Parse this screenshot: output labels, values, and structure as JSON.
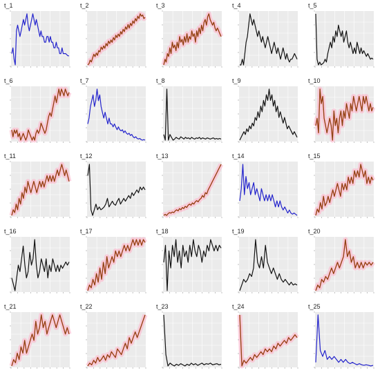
{
  "chart_data": [
    {
      "title": "t_1",
      "type": "line",
      "color": "#2222cc",
      "glow": false,
      "values": [
        3,
        4,
        2,
        1,
        7,
        8,
        7,
        6,
        7,
        8,
        9,
        8,
        9,
        10,
        8,
        7,
        8,
        9,
        10,
        9,
        8,
        9,
        8,
        7,
        6,
        7,
        6,
        6,
        5,
        5,
        6,
        6,
        5,
        6,
        5,
        5,
        4,
        4,
        5,
        4,
        4,
        3,
        3,
        4,
        3,
        3,
        3,
        2.8,
        2.6,
        2.6
      ]
    },
    {
      "title": "t_2",
      "type": "line",
      "color": "#7a4a12",
      "glow": true,
      "values": [
        1,
        1.2,
        1.8,
        1.5,
        2.2,
        2.8,
        2.4,
        3,
        2.6,
        3.4,
        3.2,
        4,
        3.6,
        4.2,
        3.8,
        4.6,
        4.2,
        5,
        4.6,
        5.2,
        4.8,
        5.6,
        5.2,
        6,
        5.6,
        6.2,
        5.8,
        6.6,
        6.2,
        7,
        6.6,
        7.4,
        7,
        7.8,
        7.2,
        8,
        7.6,
        8.4,
        8,
        8.8,
        8.4,
        9.2,
        8.8,
        9.6,
        9.2,
        9.4,
        8.8,
        9
      ]
    },
    {
      "title": "t_3",
      "type": "line",
      "color": "#7a4a12",
      "glow": true,
      "values": [
        1,
        2,
        1.5,
        3,
        2.5,
        4,
        3,
        5,
        4,
        4.5,
        3.5,
        5,
        4,
        6,
        5,
        5.5,
        4.5,
        6,
        5,
        6.5,
        5,
        6,
        5.5,
        7,
        6,
        6.5,
        5,
        7,
        6,
        7.5,
        6.5,
        8,
        7,
        8.5,
        9,
        8,
        9.5,
        10,
        9,
        8.5,
        8,
        8.5,
        7.5,
        7,
        7.5,
        7,
        6.5,
        6
      ]
    },
    {
      "title": "t_4",
      "type": "line",
      "color": "#111111",
      "glow": false,
      "values": [
        1,
        1,
        2,
        1,
        3,
        5,
        6,
        8,
        10,
        9,
        8,
        9,
        8,
        7,
        6,
        7,
        6,
        5,
        6,
        5,
        4,
        5,
        6,
        5,
        4,
        3,
        4,
        5,
        4,
        3,
        4,
        3,
        2,
        3,
        4,
        3,
        2,
        3,
        2,
        1.5,
        2,
        2,
        2.5,
        3,
        2.5,
        2
      ]
    },
    {
      "title": "t_5",
      "type": "line",
      "color": "#111111",
      "glow": false,
      "values": [
        10,
        2,
        1,
        1.5,
        1,
        1.2,
        1.4,
        2,
        1.5,
        3,
        4,
        5,
        4,
        6,
        5,
        7,
        6,
        8,
        7,
        6,
        7,
        5,
        6,
        7,
        5,
        4,
        5,
        4,
        3,
        4,
        3,
        5,
        4,
        3,
        4,
        3,
        3.5,
        3,
        2.5,
        3,
        2.5,
        2,
        2.2,
        2
      ]
    },
    {
      "title": "t_6",
      "type": "line",
      "color": "#7a4a12",
      "glow": true,
      "values": [
        3,
        2,
        3,
        2.5,
        3,
        2,
        2.5,
        1.5,
        2,
        2.5,
        2,
        1.5,
        2,
        3,
        2.5,
        2,
        1.5,
        2,
        1.5,
        2.5,
        3,
        2.5,
        3,
        4,
        3.5,
        3,
        2.5,
        3,
        4,
        5,
        5.5,
        5,
        6,
        7,
        8,
        7,
        8,
        9,
        8,
        9,
        8.5,
        8,
        9,
        8.5,
        8,
        8.5
      ]
    },
    {
      "title": "t_7",
      "type": "line",
      "color": "#2222cc",
      "glow": false,
      "values": [
        4,
        5,
        7,
        8,
        9,
        7,
        8,
        10,
        8,
        9,
        7,
        6,
        5,
        6,
        5,
        4,
        5,
        4,
        4,
        3.5,
        4,
        3.5,
        3,
        3.5,
        3,
        2.8,
        3,
        2.5,
        2.8,
        2.4,
        2.2,
        2.4,
        2,
        2.2,
        1.8,
        1.6,
        1.8,
        1.5,
        1.4,
        1.5,
        1.3,
        1.2,
        1.3,
        1.2
      ]
    },
    {
      "title": "t_8",
      "type": "line",
      "color": "#111111",
      "glow": false,
      "values": [
        2,
        1,
        10,
        1,
        2,
        1.5,
        1,
        1.2,
        1.5,
        1.3,
        1.2,
        1.6,
        1.4,
        1.2,
        1.5,
        1.3,
        1.4,
        1.2,
        1.5,
        1.3,
        1.2,
        1.4,
        1.3,
        1.5,
        1.2,
        1.4,
        1.3,
        1.2,
        1.4,
        1.3,
        1.2,
        1.3,
        1.4,
        1.2,
        1.3,
        1.2,
        1.3,
        1.2
      ]
    },
    {
      "title": "t_9",
      "type": "line",
      "color": "#111111",
      "glow": false,
      "values": [
        1,
        1.5,
        2,
        2.5,
        2,
        3,
        2.5,
        3.5,
        3,
        4,
        3.5,
        5,
        4.5,
        6,
        5,
        7,
        6,
        8,
        7,
        9,
        8,
        10,
        8,
        9,
        7,
        8,
        6,
        7,
        5,
        6,
        5,
        4,
        5,
        4,
        3,
        3.5,
        3,
        2.5,
        2,
        2.5,
        2,
        1.5
      ]
    },
    {
      "title": "t_10",
      "type": "line",
      "color": "#7a4a12",
      "glow": true,
      "values": [
        4,
        5,
        3,
        9,
        7,
        8,
        5,
        4,
        3,
        4,
        5,
        4,
        2,
        6,
        4,
        5,
        3,
        5,
        6,
        4,
        6,
        5,
        7,
        6,
        5,
        7,
        6,
        8,
        7,
        6,
        7,
        8,
        7,
        6,
        8,
        7,
        8,
        7,
        6,
        7,
        6,
        6.5
      ]
    },
    {
      "title": "t_11",
      "type": "line",
      "color": "#7a4a12",
      "glow": true,
      "values": [
        1,
        2,
        1.5,
        3,
        2,
        4,
        3,
        5,
        4,
        6,
        5,
        7,
        6,
        5,
        6,
        7,
        6,
        5,
        6,
        7,
        6,
        7,
        6,
        7,
        8,
        7,
        8,
        7,
        8,
        7,
        8,
        9,
        8,
        9,
        10,
        9,
        8,
        9,
        8,
        7
      ]
    },
    {
      "title": "t_12",
      "type": "line",
      "color": "#111111",
      "glow": false,
      "values": [
        8,
        10,
        2,
        1,
        2,
        3,
        2,
        2.5,
        2,
        2.2,
        2.5,
        3,
        4,
        2.5,
        3,
        3.5,
        3,
        2.8,
        3.5,
        4,
        3,
        3.5,
        4,
        3.5,
        4,
        4.5,
        4,
        5,
        4.5,
        5,
        5.5,
        5,
        6,
        5.5,
        6,
        5.5
      ]
    },
    {
      "title": "t_13",
      "type": "line",
      "color": "#7a4a12",
      "glow": true,
      "values": [
        1,
        1.2,
        1,
        1.3,
        1.5,
        1.4,
        1.6,
        1.5,
        1.8,
        2,
        1.8,
        2.2,
        2,
        2.4,
        2.2,
        2.6,
        2.4,
        2.8,
        3,
        2.8,
        3.2,
        3,
        3.4,
        3.6,
        3.4,
        3.8,
        4,
        4.5,
        4.2,
        5,
        4.8,
        5.5,
        6,
        6.5,
        7,
        7.5,
        8,
        8.5,
        9,
        9.5,
        10
      ]
    },
    {
      "title": "t_14",
      "type": "line",
      "color": "#2222cc",
      "glow": false,
      "values": [
        4,
        6,
        10,
        5,
        8,
        6,
        7,
        5,
        6,
        7,
        5,
        6,
        5,
        4,
        6,
        5,
        4,
        5,
        4,
        5,
        4,
        5,
        4,
        3,
        4,
        3,
        4,
        3,
        2.5,
        3,
        2.5,
        2,
        2.5,
        2,
        1.8,
        2,
        1.8,
        1.6
      ]
    },
    {
      "title": "t_15",
      "type": "line",
      "color": "#7a4a12",
      "glow": true,
      "values": [
        1,
        2,
        1.5,
        3,
        2,
        4,
        2.5,
        3,
        4,
        3,
        4,
        5,
        4,
        5,
        6,
        5,
        4,
        6,
        5,
        6,
        5,
        7,
        6,
        7,
        6,
        8,
        7,
        8,
        7,
        9,
        8,
        7,
        8,
        6,
        7,
        6,
        7,
        6.5
      ]
    },
    {
      "title": "t_16",
      "type": "line",
      "color": "#111111",
      "glow": false,
      "values": [
        3,
        2,
        1,
        3,
        5,
        4,
        6,
        8,
        5,
        3,
        4,
        7,
        5,
        6,
        9,
        5,
        3,
        4,
        6,
        5,
        4,
        6,
        3,
        5,
        4,
        6,
        5,
        4,
        5,
        4,
        5,
        4.5,
        5,
        5.5,
        5,
        5.5
      ]
    },
    {
      "title": "t_17",
      "type": "line",
      "color": "#7a4a12",
      "glow": true,
      "values": [
        1,
        2,
        1.5,
        3,
        2,
        4,
        2.5,
        5,
        3,
        6,
        4,
        7,
        5,
        6,
        7,
        6,
        8,
        7,
        8,
        7,
        8,
        9,
        8,
        9,
        8,
        9,
        10,
        9,
        10,
        9,
        10,
        9,
        10,
        9.5
      ]
    },
    {
      "title": "t_18",
      "type": "line",
      "color": "#111111",
      "glow": false,
      "values": [
        6,
        9,
        1,
        8,
        5,
        9,
        7,
        10,
        6,
        8,
        5,
        9,
        7,
        8,
        6,
        9,
        7,
        10,
        8,
        7,
        9,
        8,
        6,
        8,
        7,
        9,
        8,
        10,
        9,
        8,
        9,
        8,
        9,
        8.5
      ]
    },
    {
      "title": "t_19",
      "type": "line",
      "color": "#111111",
      "glow": false,
      "values": [
        1,
        2,
        3,
        2.5,
        3,
        4,
        3.5,
        5,
        10,
        6,
        5,
        7,
        5,
        9,
        6,
        5,
        4,
        5,
        4,
        3,
        4,
        3,
        2.5,
        3,
        2.5,
        2,
        2.5,
        2,
        2.2,
        2
      ]
    },
    {
      "title": "t_20",
      "type": "line",
      "color": "#7a4a12",
      "glow": true,
      "values": [
        1,
        2,
        1.5,
        3,
        2.5,
        3.5,
        3,
        4,
        5,
        4,
        5,
        6,
        5,
        6,
        7,
        10,
        7,
        8,
        6,
        7,
        5,
        6,
        5,
        6,
        5,
        6,
        5.5,
        6,
        5.5,
        6
      ]
    },
    {
      "title": "t_21",
      "type": "line",
      "color": "#7a4a12",
      "glow": true,
      "values": [
        1,
        2,
        1.5,
        3,
        2,
        4,
        3,
        5,
        3,
        4,
        5,
        6,
        5,
        8,
        6,
        7,
        9,
        7,
        8,
        6,
        7,
        8,
        9,
        8,
        7,
        8,
        9,
        8,
        7,
        6,
        7,
        6
      ]
    },
    {
      "title": "t_22",
      "type": "line",
      "color": "#7a4a12",
      "glow": true,
      "values": [
        1,
        1.5,
        1.2,
        2,
        1.5,
        2.5,
        1.8,
        2.2,
        2.8,
        2,
        3,
        2.5,
        3.5,
        3,
        2.5,
        4,
        3.5,
        3,
        4,
        5,
        4,
        6,
        5,
        6,
        7,
        6,
        7,
        8,
        9,
        10
      ]
    },
    {
      "title": "t_23",
      "type": "line",
      "color": "#111111",
      "glow": false,
      "values": [
        10,
        3,
        1,
        1.5,
        1.2,
        1,
        1.3,
        1.1,
        1.4,
        1.2,
        1,
        1.3,
        1.1,
        1.5,
        1.2,
        1.4,
        1.1,
        1.3,
        1.5,
        1.2,
        1.4,
        1.3,
        1.5,
        1.2,
        1.3,
        1.4,
        1.2,
        1.3
      ]
    },
    {
      "title": "t_24",
      "type": "line",
      "color": "#7a4a12",
      "glow": true,
      "values": [
        10,
        1,
        2,
        1.5,
        2,
        2.5,
        2,
        3,
        2.5,
        3,
        3.5,
        3,
        4,
        3.5,
        4,
        3.5,
        4.5,
        4,
        5,
        4.5,
        5,
        5.5,
        5,
        6,
        5.5,
        6,
        6.5,
        6
      ]
    },
    {
      "title": "t_25",
      "type": "line",
      "color": "#2222cc",
      "glow": false,
      "values": [
        2,
        10,
        4,
        3,
        4,
        2.5,
        3,
        2.5,
        3,
        2.5,
        2,
        2.5,
        2,
        2.5,
        2,
        1.8,
        2,
        1.8,
        1.6,
        1.8,
        1.6,
        1.5,
        1.6,
        1.5,
        1.4,
        1.5
      ]
    }
  ]
}
